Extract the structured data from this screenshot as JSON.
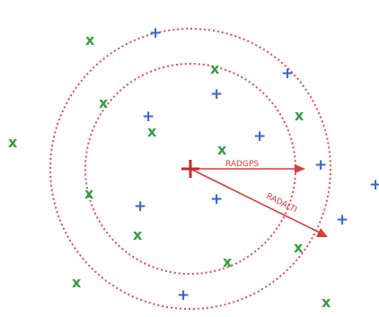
{
  "colors": {
    "ring": "#e5484d",
    "arrow": "#d93b3b",
    "center": "#c42b2b",
    "x_mark": "#2f9e3f",
    "plus_mark": "#3366cc"
  },
  "labels": {
    "radgps": "RADGPS",
    "radalti": "RADALTI"
  },
  "glyphs": {
    "x": "x",
    "plus": "+"
  }
}
